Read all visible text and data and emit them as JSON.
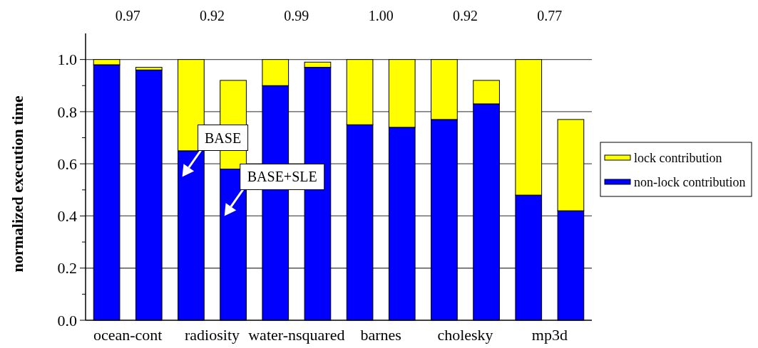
{
  "chart_data": {
    "type": "bar",
    "stacked": true,
    "ylabel": "normalized execution time",
    "categories": [
      "ocean-cont",
      null,
      "radiosity",
      null,
      "water-nsquared",
      null,
      "barnes",
      null,
      "cholesky",
      null,
      "mp3d",
      null
    ],
    "series": [
      {
        "name": "non-lock contribution",
        "color": "#0000ff",
        "values": [
          0.98,
          0.96,
          0.65,
          0.58,
          0.9,
          0.97,
          0.75,
          0.74,
          0.77,
          0.83,
          0.48,
          0.42
        ]
      },
      {
        "name": "lock contribution",
        "color": "#ffff00",
        "values": [
          0.02,
          0.01,
          0.35,
          0.34,
          0.1,
          0.02,
          0.25,
          0.26,
          0.23,
          0.09,
          0.52,
          0.35
        ]
      }
    ],
    "ylim": [
      0,
      1.1
    ],
    "yticks": [
      {
        "value": 0,
        "label": "0.0"
      },
      {
        "value": 0.1,
        "label": null
      },
      {
        "value": 0.2,
        "label": "0.2"
      },
      {
        "value": 0.3,
        "label": null
      },
      {
        "value": 0.4,
        "label": "0.4"
      },
      {
        "value": 0.5,
        "label": null
      },
      {
        "value": 0.6,
        "label": "0.6"
      },
      {
        "value": 0.7,
        "label": null
      },
      {
        "value": 0.8,
        "label": "0.8"
      },
      {
        "value": 0.9,
        "label": null
      },
      {
        "value": 1.0,
        "label": "1.0"
      }
    ],
    "grid": "y",
    "legend": "right",
    "annotations": [
      "0.97",
      "0.92",
      "0.99",
      "1.00",
      "0.92",
      "0.77",
      "BASE",
      "BASE+SLE"
    ]
  }
}
